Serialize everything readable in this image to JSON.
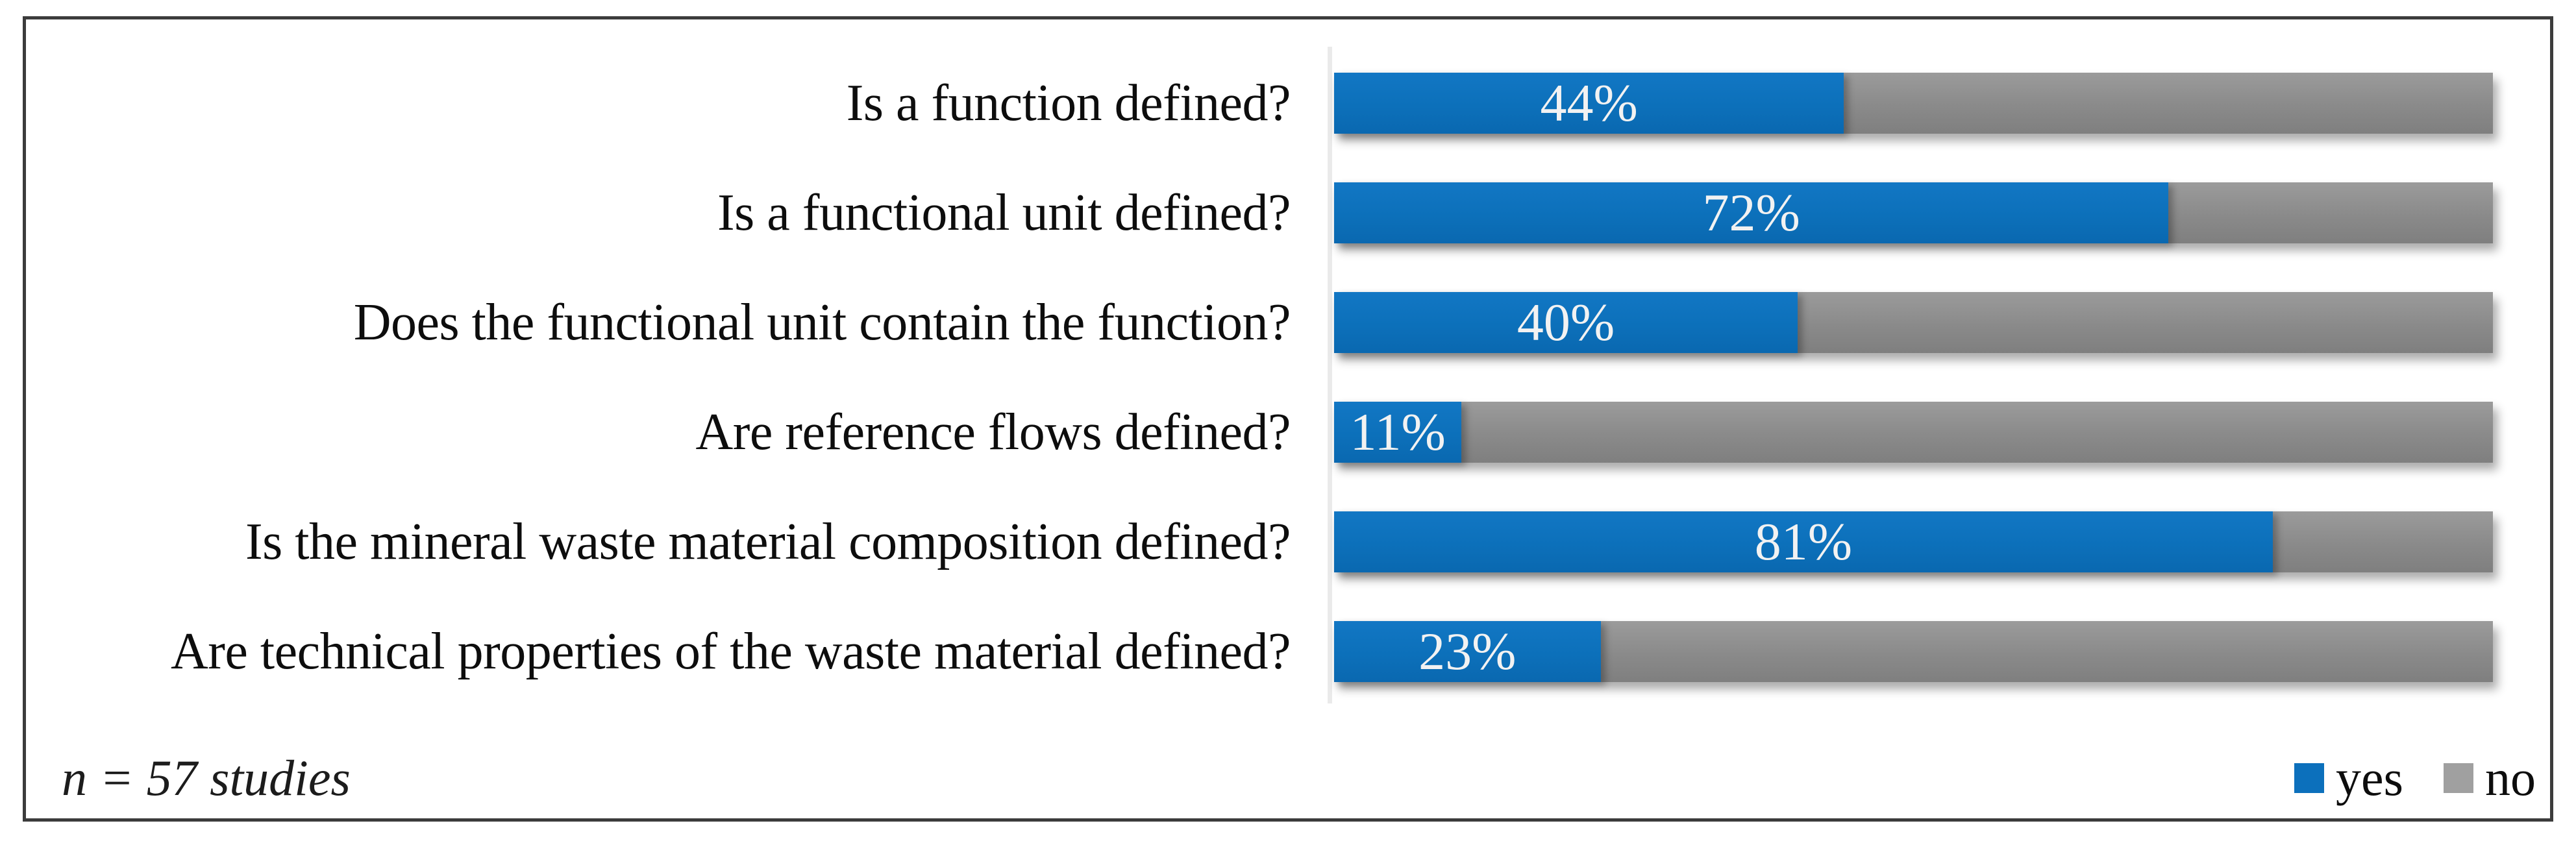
{
  "figure": {
    "note": "n = 57 studies"
  },
  "chart_data": {
    "type": "bar",
    "orientation": "horizontal",
    "stacked": true,
    "unit": "percent",
    "xlim": [
      0,
      100
    ],
    "grid": false,
    "legend_position": "bottom-right",
    "annotation": "n = 57 studies",
    "categories": [
      "Is a function defined?",
      "Is a functional unit defined?",
      "Does the functional unit contain the function?",
      "Are reference flows defined?",
      "Is the mineral waste material composition defined?",
      "Are technical properties of the waste material defined?"
    ],
    "series": [
      {
        "name": "yes",
        "color": "#0C70BC",
        "values": [
          44,
          72,
          40,
          11,
          81,
          23
        ]
      },
      {
        "name": "no",
        "color": "#9E9E9E",
        "values": [
          56,
          28,
          60,
          89,
          19,
          77
        ]
      }
    ],
    "bar_labels": [
      "44%",
      "72%",
      "40%",
      "11%",
      "81%",
      "23%"
    ]
  }
}
